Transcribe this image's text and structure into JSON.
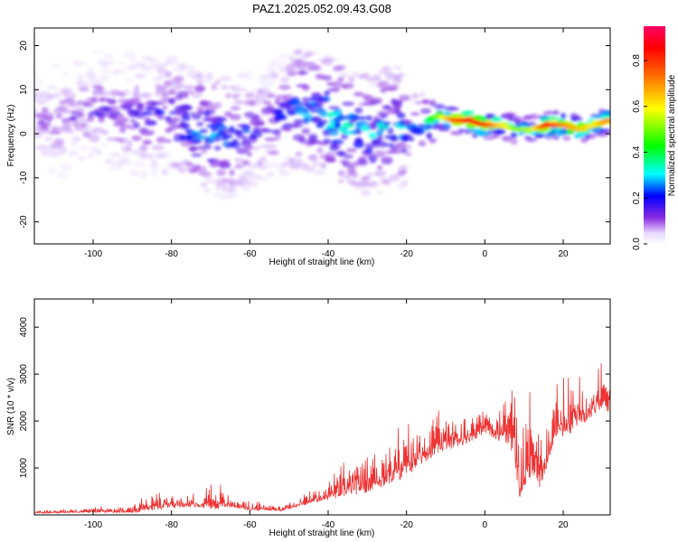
{
  "title": "PAZ1.2025.052.09.43.G08",
  "chart_data": [
    {
      "type": "heatmap",
      "xlabel": "Height of straight line (km)",
      "ylabel": "Frequency (Hz)",
      "xlim": [
        -115,
        32
      ],
      "ylim": [
        -25,
        24
      ],
      "xticks": [
        -100,
        -80,
        -60,
        -40,
        -20,
        0,
        20
      ],
      "yticks": [
        -20,
        -10,
        0,
        10,
        20
      ],
      "colorbar": {
        "label": "Normalized spectral amplitude",
        "range": [
          0,
          0.95
        ],
        "ticks": [
          0.0,
          0.2,
          0.4,
          0.6,
          0.8
        ]
      },
      "ridge": [
        {
          "x": -110,
          "freq": 3,
          "amp": 0.12
        },
        {
          "x": -100,
          "freq": 5,
          "amp": 0.15
        },
        {
          "x": -90,
          "freq": 4,
          "amp": 0.18
        },
        {
          "x": -80,
          "freq": 4,
          "amp": 0.22
        },
        {
          "x": -75,
          "freq": 2,
          "amp": 0.3
        },
        {
          "x": -70,
          "freq": 0,
          "amp": 0.28
        },
        {
          "x": -65,
          "freq": -1,
          "amp": 0.25
        },
        {
          "x": -58,
          "freq": 1,
          "amp": 0.18
        },
        {
          "x": -52,
          "freq": 4,
          "amp": 0.2
        },
        {
          "x": -47,
          "freq": 6,
          "amp": 0.32
        },
        {
          "x": -43,
          "freq": 5,
          "amp": 0.28
        },
        {
          "x": -38,
          "freq": 3,
          "amp": 0.38
        },
        {
          "x": -33,
          "freq": 1,
          "amp": 0.3
        },
        {
          "x": -28,
          "freq": 0,
          "amp": 0.3
        },
        {
          "x": -24,
          "freq": 2,
          "amp": 0.32
        },
        {
          "x": -20,
          "freq": 1,
          "amp": 0.28
        },
        {
          "x": -15,
          "freq": 3,
          "amp": 0.35
        },
        {
          "x": -12,
          "freq": 4,
          "amp": 0.5
        },
        {
          "x": -8,
          "freq": 3,
          "amp": 0.75
        },
        {
          "x": -4,
          "freq": 3,
          "amp": 0.88
        },
        {
          "x": 0,
          "freq": 2,
          "amp": 0.82
        },
        {
          "x": 4,
          "freq": 2,
          "amp": 0.62
        },
        {
          "x": 8,
          "freq": 1,
          "amp": 0.5
        },
        {
          "x": 12,
          "freq": 1,
          "amp": 0.55
        },
        {
          "x": 16,
          "freq": 2,
          "amp": 0.85
        },
        {
          "x": 20,
          "freq": 2,
          "amp": 0.7
        },
        {
          "x": 24,
          "freq": 1,
          "amp": 0.65
        },
        {
          "x": 28,
          "freq": 2,
          "amp": 0.6
        },
        {
          "x": 31,
          "freq": 3,
          "amp": 0.7
        }
      ]
    },
    {
      "type": "line",
      "xlabel": "Height of straight line (km)",
      "ylabel": "SNR (10 * v/v)",
      "xlim": [
        -115,
        32
      ],
      "ylim": [
        0,
        4600
      ],
      "xticks": [
        -100,
        -80,
        -60,
        -40,
        -20,
        0,
        20
      ],
      "yticks": [
        1000,
        2000,
        3000,
        4000
      ],
      "color": "#ee3333",
      "envelope": [
        {
          "x": -115,
          "base": 50,
          "amp": 80
        },
        {
          "x": -100,
          "base": 80,
          "amp": 120
        },
        {
          "x": -90,
          "base": 90,
          "amp": 180
        },
        {
          "x": -86,
          "base": 180,
          "amp": 420
        },
        {
          "x": -80,
          "base": 250,
          "amp": 350
        },
        {
          "x": -72,
          "base": 260,
          "amp": 400
        },
        {
          "x": -70,
          "base": 300,
          "amp": 900
        },
        {
          "x": -66,
          "base": 250,
          "amp": 350
        },
        {
          "x": -60,
          "base": 150,
          "amp": 220
        },
        {
          "x": -52,
          "base": 120,
          "amp": 150
        },
        {
          "x": -45,
          "base": 300,
          "amp": 300
        },
        {
          "x": -40,
          "base": 450,
          "amp": 550
        },
        {
          "x": -35,
          "base": 600,
          "amp": 800
        },
        {
          "x": -30,
          "base": 750,
          "amp": 1100
        },
        {
          "x": -25,
          "base": 900,
          "amp": 1200
        },
        {
          "x": -20,
          "base": 1100,
          "amp": 1200
        },
        {
          "x": -15,
          "base": 1400,
          "amp": 1000
        },
        {
          "x": -10,
          "base": 1600,
          "amp": 900
        },
        {
          "x": -5,
          "base": 1700,
          "amp": 800
        },
        {
          "x": 0,
          "base": 1900,
          "amp": 700
        },
        {
          "x": 5,
          "base": 1800,
          "amp": 1200
        },
        {
          "x": 7,
          "base": 2000,
          "amp": 2600
        },
        {
          "x": 9,
          "base": 700,
          "amp": 1800
        },
        {
          "x": 12,
          "base": 1300,
          "amp": 2000
        },
        {
          "x": 14,
          "base": 900,
          "amp": 1500
        },
        {
          "x": 18,
          "base": 1900,
          "amp": 1300
        },
        {
          "x": 22,
          "base": 2100,
          "amp": 1400
        },
        {
          "x": 26,
          "base": 2300,
          "amp": 1200
        },
        {
          "x": 30,
          "base": 2500,
          "amp": 1000
        },
        {
          "x": 32,
          "base": 2400,
          "amp": 900
        }
      ]
    }
  ]
}
